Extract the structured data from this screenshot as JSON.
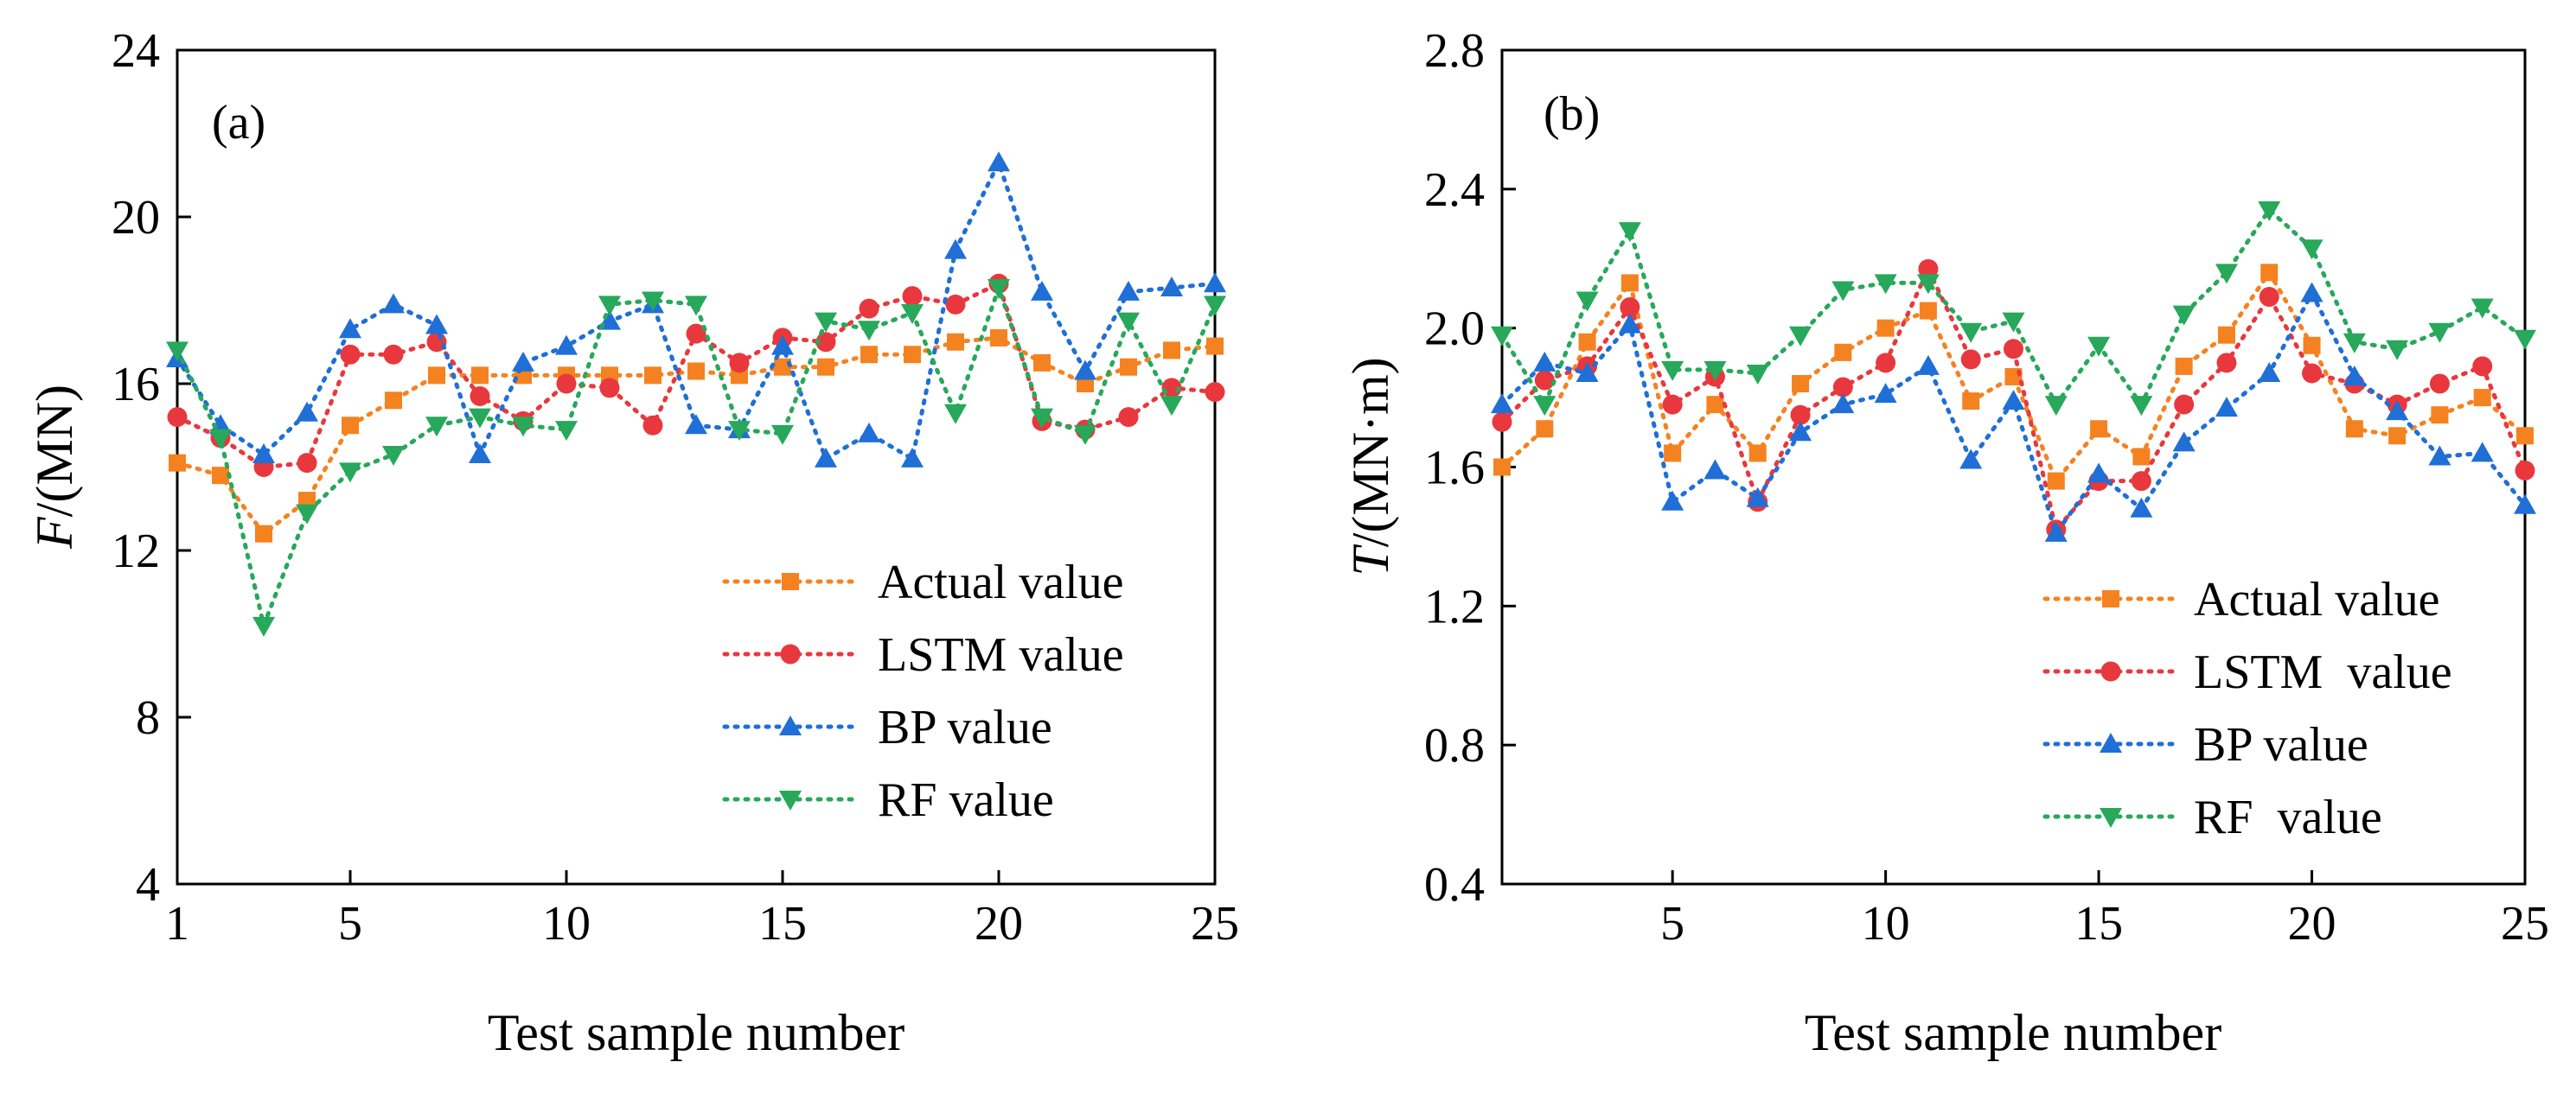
{
  "figure": {
    "colors": {
      "actual": "#f58220",
      "lstm": "#e8383d",
      "bp": "#1f6fd6",
      "rf": "#27a85a"
    }
  },
  "chart_data": [
    {
      "type": "line",
      "panel_label": "(a)",
      "title": "",
      "xlabel": "Test sample number",
      "ylabel_symbol": "F",
      "ylabel_unit": "/(MN)",
      "xlim": [
        1,
        25
      ],
      "ylim": [
        4,
        24
      ],
      "xticks": [
        1,
        5,
        10,
        15,
        20,
        25
      ],
      "xtick_labels": [
        "1",
        "5",
        "10",
        "15",
        "20",
        "25"
      ],
      "yticks": [
        4,
        8,
        12,
        16,
        20,
        24
      ],
      "ytick_labels": [
        "4",
        "8",
        "12",
        "16",
        "20",
        "24"
      ],
      "legend_position": "bottom-right",
      "x": [
        1,
        2,
        3,
        4,
        5,
        6,
        7,
        8,
        9,
        10,
        11,
        12,
        13,
        14,
        15,
        16,
        17,
        18,
        19,
        20,
        21,
        22,
        23,
        24,
        25
      ],
      "series": [
        {
          "key": "actual",
          "name": "Actual value",
          "marker": "square",
          "values": [
            14.1,
            13.8,
            12.4,
            13.2,
            15.0,
            15.6,
            16.2,
            16.2,
            16.2,
            16.2,
            16.2,
            16.2,
            16.3,
            16.2,
            16.4,
            16.4,
            16.7,
            16.7,
            17.0,
            17.1,
            16.5,
            16.0,
            16.4,
            16.8,
            16.9
          ]
        },
        {
          "key": "lstm",
          "name": "LSTM value",
          "marker": "circle",
          "values": [
            15.2,
            14.7,
            14.0,
            14.1,
            16.7,
            16.7,
            17.0,
            15.7,
            15.1,
            16.0,
            15.9,
            15.0,
            17.2,
            16.5,
            17.1,
            17.0,
            17.8,
            18.1,
            17.9,
            18.4,
            15.1,
            14.9,
            15.2,
            15.9,
            15.8
          ]
        },
        {
          "key": "bp",
          "name": "BP value",
          "marker": "triangle-up",
          "values": [
            16.6,
            15.0,
            14.3,
            15.3,
            17.3,
            17.9,
            17.4,
            14.3,
            16.5,
            16.9,
            17.5,
            17.9,
            15.0,
            14.9,
            16.9,
            14.2,
            14.8,
            14.2,
            19.2,
            21.3,
            18.2,
            16.3,
            18.2,
            18.3,
            18.4
          ]
        },
        {
          "key": "rf",
          "name": "RF value",
          "marker": "triangle-down",
          "values": [
            16.8,
            14.7,
            10.2,
            12.9,
            13.9,
            14.3,
            15.0,
            15.2,
            15.0,
            14.9,
            17.9,
            18.0,
            17.9,
            14.9,
            14.8,
            17.5,
            17.3,
            17.7,
            15.3,
            18.3,
            15.2,
            14.8,
            17.5,
            15.5,
            17.9
          ]
        }
      ]
    },
    {
      "type": "line",
      "panel_label": "(b)",
      "title": "",
      "xlabel": "Test sample number",
      "ylabel_symbol": "T",
      "ylabel_unit": "/(MN·m)",
      "xlim": [
        1,
        25
      ],
      "ylim": [
        0.4,
        2.8
      ],
      "xticks": [
        5,
        10,
        15,
        20,
        25
      ],
      "xtick_labels": [
        "5",
        "10",
        "15",
        "20",
        "25"
      ],
      "yticks": [
        0.4,
        0.8,
        1.2,
        1.6,
        2.0,
        2.4,
        2.8
      ],
      "ytick_labels": [
        "0.4",
        "0.8",
        "1.2",
        "1.6",
        "2.0",
        "2.4",
        "2.8"
      ],
      "legend_position": "bottom-right",
      "x": [
        1,
        2,
        3,
        4,
        5,
        6,
        7,
        8,
        9,
        10,
        11,
        12,
        13,
        14,
        15,
        16,
        17,
        18,
        19,
        20,
        21,
        22,
        23,
        24,
        25
      ],
      "series": [
        {
          "key": "actual",
          "name": "Actual value",
          "marker": "square",
          "values": [
            1.6,
            1.71,
            1.96,
            2.13,
            1.64,
            1.78,
            1.64,
            1.84,
            1.93,
            2.0,
            2.05,
            1.79,
            1.86,
            1.56,
            1.71,
            1.63,
            1.89,
            1.98,
            2.16,
            1.95,
            1.71,
            1.69,
            1.75,
            1.8,
            1.69
          ]
        },
        {
          "key": "lstm",
          "name": "LSTM  value",
          "marker": "circle",
          "values": [
            1.73,
            1.85,
            1.89,
            2.06,
            1.78,
            1.86,
            1.5,
            1.75,
            1.83,
            1.9,
            2.17,
            1.91,
            1.94,
            1.42,
            1.56,
            1.56,
            1.78,
            1.9,
            2.09,
            1.87,
            1.84,
            1.78,
            1.84,
            1.89,
            1.59
          ]
        },
        {
          "key": "bp",
          "name": "BP value",
          "marker": "triangle-up",
          "values": [
            1.78,
            1.9,
            1.87,
            2.01,
            1.5,
            1.59,
            1.51,
            1.7,
            1.78,
            1.81,
            1.89,
            1.62,
            1.79,
            1.41,
            1.58,
            1.48,
            1.67,
            1.77,
            1.87,
            2.1,
            1.86,
            1.76,
            1.63,
            1.64,
            1.49
          ]
        },
        {
          "key": "rf",
          "name": "RF  value",
          "marker": "triangle-down",
          "values": [
            1.98,
            1.78,
            2.08,
            2.28,
            1.88,
            1.88,
            1.87,
            1.98,
            2.11,
            2.13,
            2.13,
            1.99,
            2.02,
            1.78,
            1.95,
            1.78,
            2.04,
            2.16,
            2.34,
            2.23,
            1.96,
            1.94,
            1.99,
            2.06,
            1.97
          ]
        }
      ]
    }
  ]
}
